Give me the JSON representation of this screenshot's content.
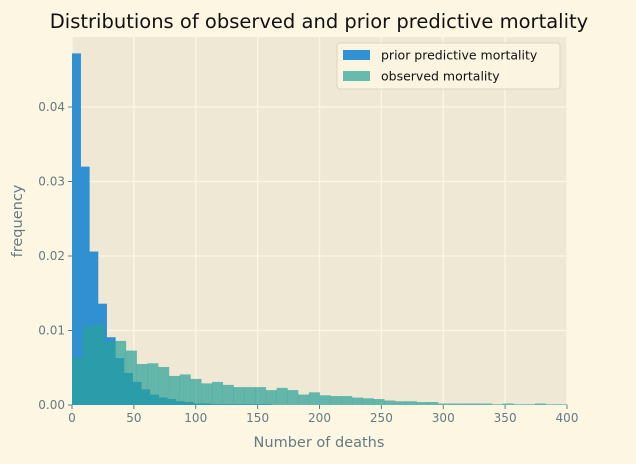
{
  "chart_data": {
    "type": "bar",
    "title": "Distributions of observed and prior predictive mortality",
    "xlabel": "Number of deaths",
    "ylabel": "frequency",
    "xlim": [
      0,
      400
    ],
    "ylim": [
      0,
      0.0494
    ],
    "grid": true,
    "legend_position": "top-right",
    "x_ticks": [
      "0",
      "50",
      "100",
      "150",
      "200",
      "250",
      "300",
      "350",
      "400"
    ],
    "x_tick_values": [
      0,
      50,
      100,
      150,
      200,
      250,
      300,
      350,
      400
    ],
    "y_ticks": [
      "0.00",
      "0.01",
      "0.02",
      "0.03",
      "0.04"
    ],
    "y_tick_values": [
      0,
      0.01,
      0.02,
      0.03,
      0.04
    ],
    "series": [
      {
        "name": "prior predictive mortality",
        "color": "#268bd2",
        "opacity": 0.95,
        "bin_start": 0,
        "bin_width": 7,
        "values": [
          0.0472,
          0.032,
          0.0206,
          0.0136,
          0.0091,
          0.0063,
          0.0043,
          0.0031,
          0.0021,
          0.0014,
          0.001,
          0.0008,
          0.0005,
          0.0004,
          0.0002,
          0.0002,
          0.0001,
          0.0001,
          0.0001,
          0.0001,
          0.0001,
          0.0001,
          0.0001
        ]
      },
      {
        "name": "observed mortality",
        "color": "#2aa198",
        "opacity": 0.7,
        "bin_start": 0,
        "bin_width": 8.7,
        "values": [
          0.0063,
          0.0106,
          0.0108,
          0.0085,
          0.0086,
          0.0073,
          0.0055,
          0.0056,
          0.0051,
          0.0039,
          0.0041,
          0.0035,
          0.0029,
          0.0031,
          0.0027,
          0.0024,
          0.0024,
          0.0024,
          0.002,
          0.0023,
          0.002,
          0.0014,
          0.0017,
          0.0013,
          0.0012,
          0.0012,
          0.001,
          0.0009,
          0.0008,
          0.0006,
          0.0005,
          0.0005,
          0.0004,
          0.0004,
          0.0002,
          0.0002,
          0.0002,
          0.0002,
          0.0002,
          0.0001,
          0.0002,
          0.0001,
          0.0001,
          0.0002,
          0.0001,
          0.0001
        ]
      }
    ]
  }
}
